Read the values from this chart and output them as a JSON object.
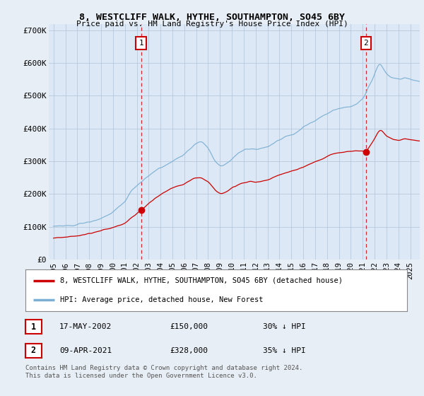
{
  "title": "8, WESTCLIFF WALK, HYTHE, SOUTHAMPTON, SO45 6BY",
  "subtitle": "Price paid vs. HM Land Registry's House Price Index (HPI)",
  "background_color": "#e8eef5",
  "plot_bg_color": "#dce8f5",
  "ylabel": "",
  "ylim": [
    0,
    720000
  ],
  "yticks": [
    0,
    100000,
    200000,
    300000,
    400000,
    500000,
    600000,
    700000
  ],
  "ytick_labels": [
    "£0",
    "£100K",
    "£200K",
    "£300K",
    "£400K",
    "£500K",
    "£600K",
    "£700K"
  ],
  "sale1_year": 2002.37,
  "sale1_price": 150000,
  "sale2_year": 2021.27,
  "sale2_price": 328000,
  "vline_color": "#cc0000",
  "legend_label_red": "8, WESTCLIFF WALK, HYTHE, SOUTHAMPTON, SO45 6BY (detached house)",
  "legend_label_blue": "HPI: Average price, detached house, New Forest",
  "footnote1": "Contains HM Land Registry data © Crown copyright and database right 2024.",
  "footnote2": "This data is licensed under the Open Government Licence v3.0.",
  "table_row1": [
    "1",
    "17-MAY-2002",
    "£150,000",
    "30% ↓ HPI"
  ],
  "table_row2": [
    "2",
    "09-APR-2021",
    "£328,000",
    "35% ↓ HPI"
  ],
  "red_line_color": "#cc0000",
  "blue_line_color": "#7bafd4",
  "grid_color": "#b0c4d8"
}
